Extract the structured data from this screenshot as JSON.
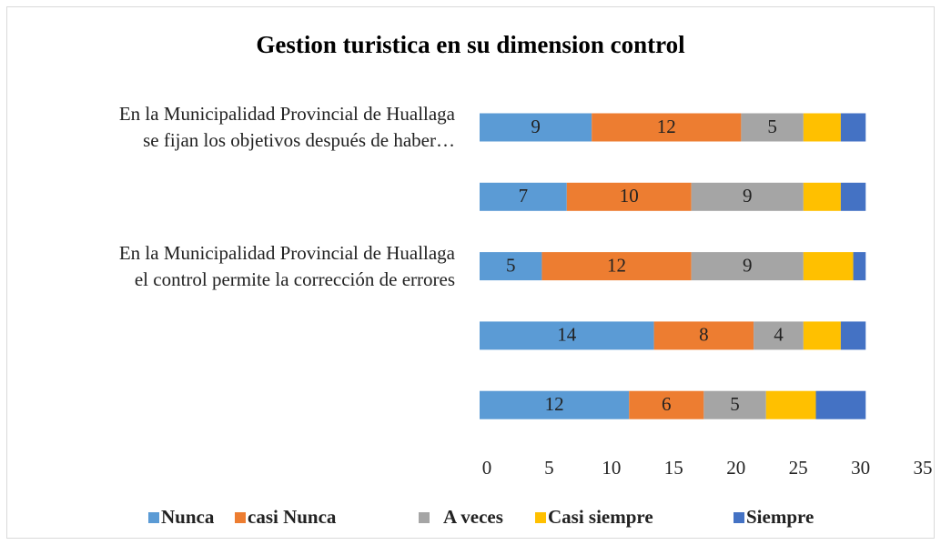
{
  "chart_data": {
    "type": "stacked_barh",
    "title": "Gestion turistica en su dimension control",
    "categories": [
      "En la Municipalidad Provincial de Huallaga\nse fijan los objetivos después de haber…",
      null,
      "En la Municipalidad Provincial de Huallaga\nel control permite la corrección de errores",
      null,
      null
    ],
    "series": [
      {
        "name": "Nunca",
        "color": "#5b9bd5",
        "values": [
          9,
          7,
          5,
          14,
          12
        ],
        "data_labels": true
      },
      {
        "name": "casi Nunca",
        "color": "#ed7d31",
        "values": [
          12,
          10,
          12,
          8,
          6
        ],
        "data_labels": true
      },
      {
        "name": "A veces",
        "color": "#a5a5a5",
        "values": [
          5,
          9,
          9,
          4,
          5
        ],
        "data_labels": true
      },
      {
        "name": "Casi siempre",
        "color": "#ffc000",
        "values": [
          3,
          3,
          4,
          3,
          4
        ],
        "data_labels": false
      },
      {
        "name": "Siempre",
        "color": "#4472c4",
        "values": [
          2,
          2,
          1,
          2,
          4
        ],
        "data_labels": false
      }
    ],
    "xlim": [
      0,
      35
    ],
    "xticks": [
      0,
      5,
      10,
      15,
      20,
      25,
      30,
      35
    ],
    "grid": false,
    "legend": "bottom"
  }
}
